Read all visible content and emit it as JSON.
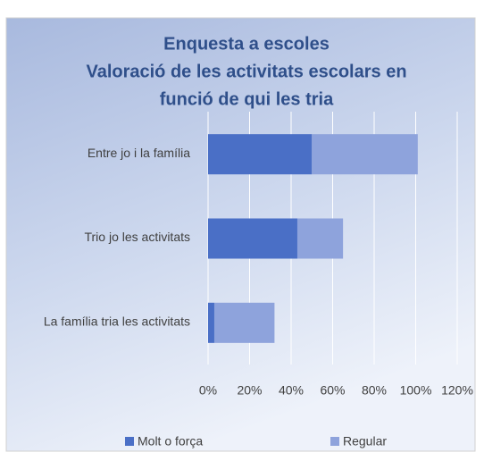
{
  "chart_data": {
    "type": "stacked_barh",
    "title": [
      "Enquesta a escoles",
      "Valoració de les activitats escolars en",
      "funció de qui les tria"
    ],
    "categories": [
      "Entre jo i la família",
      "Trio jo les activitats",
      "La família tria les activitats"
    ],
    "series": [
      {
        "name": "Molt o força",
        "color": "#4a6fc6",
        "values": [
          50,
          43,
          3
        ]
      },
      {
        "name": "Regular",
        "color": "#8ea3dc",
        "values": [
          51,
          22,
          29
        ]
      }
    ],
    "xlim": [
      0,
      120
    ],
    "xticks": [
      {
        "value": 0,
        "label": "0%"
      },
      {
        "value": 20,
        "label": "20%"
      },
      {
        "value": 40,
        "label": "40%"
      },
      {
        "value": 60,
        "label": "60%"
      },
      {
        "value": 80,
        "label": "80%"
      },
      {
        "value": 100,
        "label": "100%"
      },
      {
        "value": 120,
        "label": "120%"
      }
    ],
    "grid": true,
    "legend": "bottom"
  }
}
